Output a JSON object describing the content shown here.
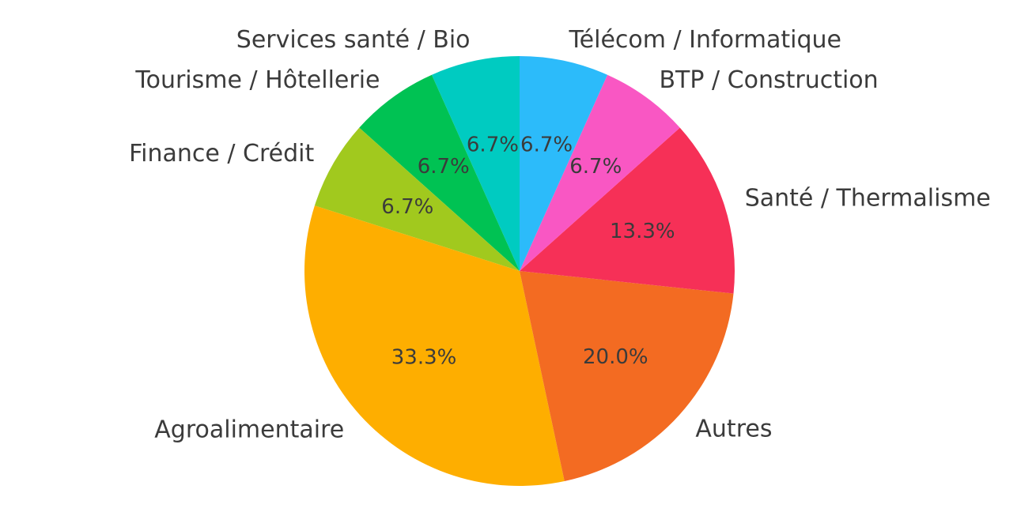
{
  "chart_data": {
    "type": "pie",
    "title": "",
    "start_angle_deg": 90,
    "direction": "counterclockwise",
    "slices": [
      {
        "label": "Services santé / Bio",
        "value": 6.7,
        "pct_label": "6.7%",
        "color": "#00CBC1"
      },
      {
        "label": "Tourisme / Hôtellerie",
        "value": 6.7,
        "pct_label": "6.7%",
        "color": "#00C253"
      },
      {
        "label": "Finance / Crédit",
        "value": 6.7,
        "pct_label": "6.7%",
        "color": "#A1C91E"
      },
      {
        "label": "Agroalimentaire",
        "value": 33.3,
        "pct_label": "33.3%",
        "color": "#FEAE00"
      },
      {
        "label": "Autres",
        "value": 20.0,
        "pct_label": "20.0%",
        "color": "#F36B22"
      },
      {
        "label": "Santé / Thermalisme",
        "value": 13.3,
        "pct_label": "13.3%",
        "color": "#F63057"
      },
      {
        "label": "BTP / Construction",
        "value": 6.7,
        "pct_label": "6.7%",
        "color": "#F957C3"
      },
      {
        "label": "Télécom / Informatique",
        "value": 6.7,
        "pct_label": "6.7%",
        "color": "#2CBBFA"
      }
    ]
  }
}
